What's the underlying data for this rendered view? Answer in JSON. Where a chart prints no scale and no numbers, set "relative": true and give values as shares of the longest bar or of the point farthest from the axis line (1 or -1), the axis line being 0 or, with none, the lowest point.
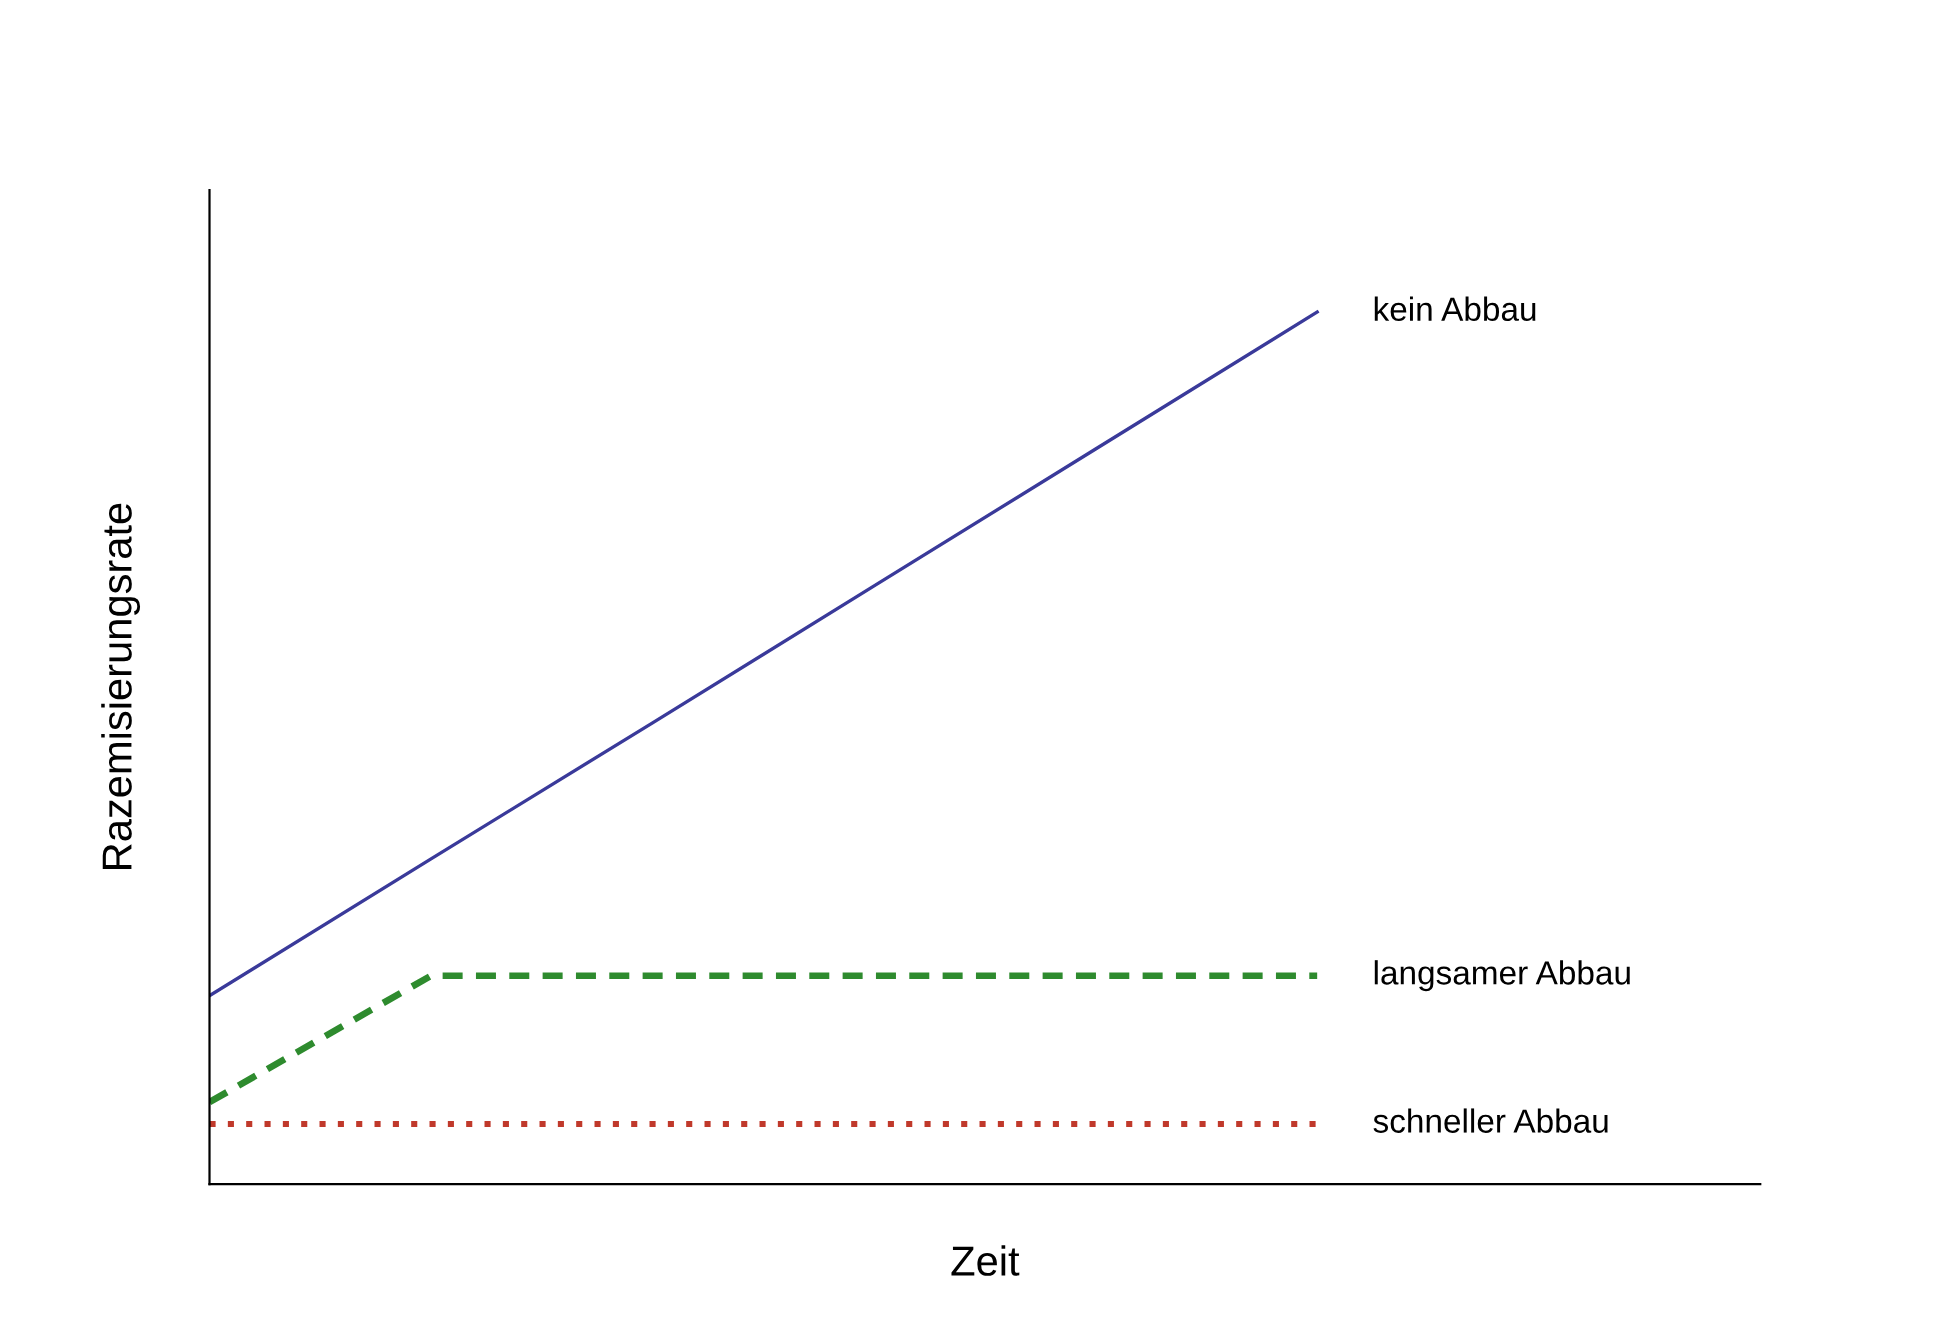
{
  "chart_data": {
    "type": "line",
    "relative": true,
    "xlabel": "Zeit",
    "ylabel": "Razemisierungsrate",
    "categories": [
      null,
      null,
      null,
      null,
      null,
      null,
      null,
      null
    ],
    "series": [
      {
        "name": "kein Abbau",
        "color": "#3a3a9a",
        "line_style": "solid",
        "values": [
          0.216,
          0.373,
          0.529,
          0.686,
          0.843,
          1.0,
          null,
          null
        ]
      },
      {
        "name": "langsamer Abbau",
        "color": "#2e8b2e",
        "line_style": "dashed",
        "values": [
          0.094,
          0.239,
          0.239,
          0.239,
          0.239,
          0.239,
          null,
          null
        ]
      },
      {
        "name": "schneller Abbau",
        "color": "#c0392b",
        "line_style": "dotted",
        "values": [
          0.069,
          0.069,
          0.069,
          0.069,
          0.069,
          0.069,
          null,
          null
        ]
      }
    ],
    "legend": false,
    "tick_labels": false
  }
}
